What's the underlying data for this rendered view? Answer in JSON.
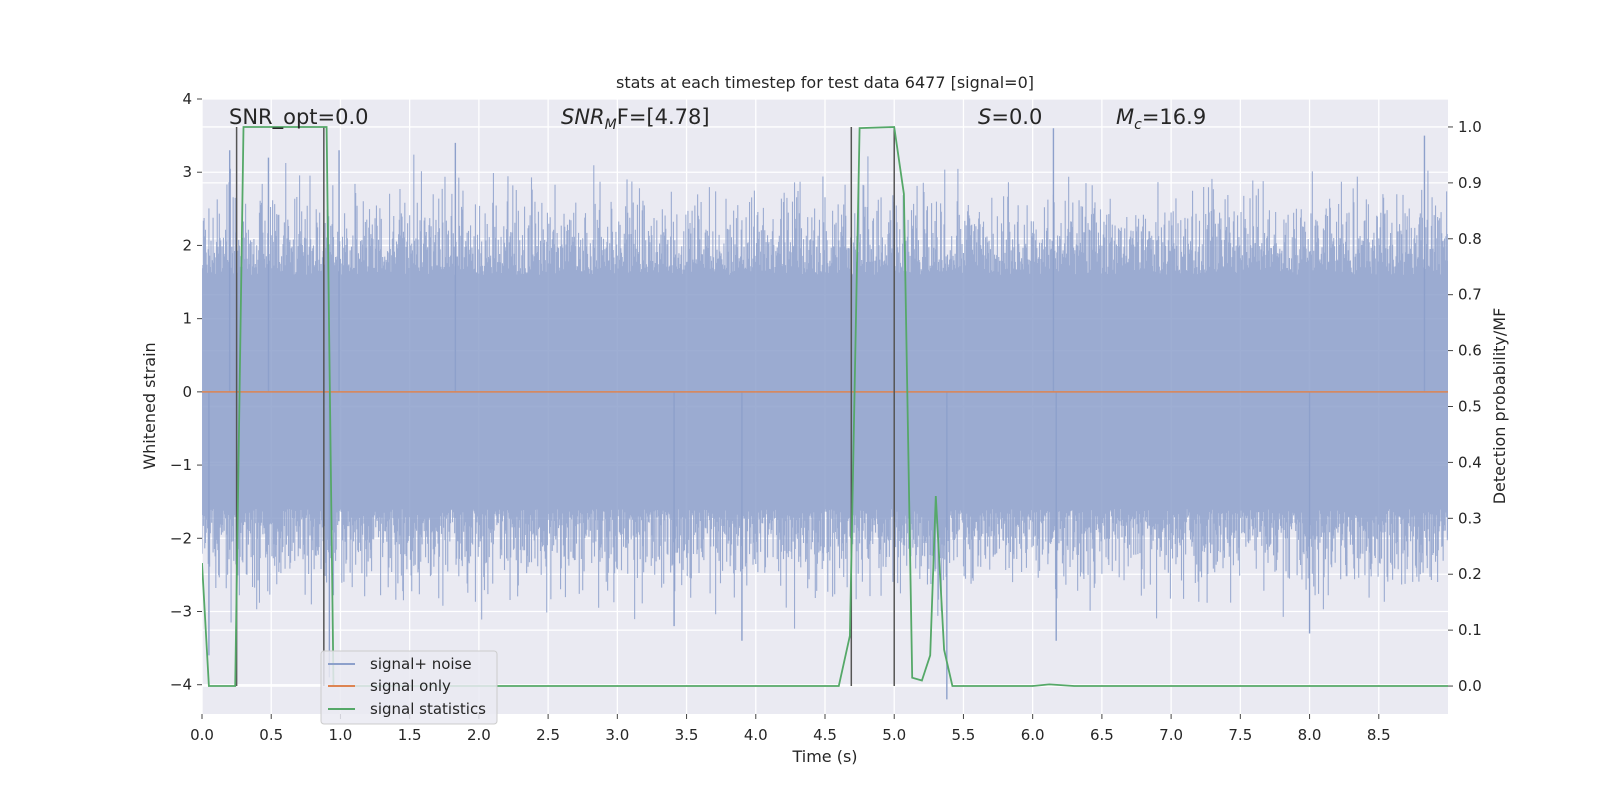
{
  "chart_data": {
    "type": "line",
    "title": "stats at each timestep for test data 6477 [signal=0]",
    "xlabel": "Time (s)",
    "ylabel": "Whitened strain",
    "y2label": "Detection probability/MF",
    "xlim": [
      0,
      9
    ],
    "ylim": [
      -4.4,
      4.0
    ],
    "y2lim": [
      -0.05,
      1.05
    ],
    "xticks": [
      0.0,
      0.5,
      1.0,
      1.5,
      2.0,
      2.5,
      3.0,
      3.5,
      4.0,
      4.5,
      5.0,
      5.5,
      6.0,
      6.5,
      7.0,
      7.5,
      8.0,
      8.5
    ],
    "xtick_labels": [
      "0.0",
      "0.5",
      "1.0",
      "1.5",
      "2.0",
      "2.5",
      "3.0",
      "3.5",
      "4.0",
      "4.5",
      "5.0",
      "5.5",
      "6.0",
      "6.5",
      "7.0",
      "7.5",
      "8.0",
      "8.5"
    ],
    "yticks": [
      4,
      3,
      2,
      1,
      0,
      -1,
      -2,
      -3,
      -4
    ],
    "ytick_labels": [
      "4",
      "3",
      "2",
      "1",
      "0",
      "−1",
      "−2",
      "−3",
      "−4"
    ],
    "y2ticks": [
      1.0,
      0.9,
      0.8,
      0.7,
      0.6,
      0.5,
      0.4,
      0.3,
      0.2,
      0.1,
      0.0
    ],
    "y2tick_labels": [
      "1.0",
      "0.9",
      "0.8",
      "0.7",
      "0.6",
      "0.5",
      "0.4",
      "0.3",
      "0.2",
      "0.1",
      "0.0"
    ],
    "grid": true,
    "legend_position": "lower-left",
    "annotations": {
      "snr_opt": "SNR_opt=0.0",
      "snr_mf_base": "SNR",
      "snr_mf_sub": "M",
      "snr_mf_rest": "F=[4.78]",
      "s_var": "S",
      "s_rest": "=0.0",
      "mc_base": "M",
      "mc_sub": "c",
      "mc_rest": "=16.9"
    },
    "series": [
      {
        "name": "signal+ noise",
        "color": "#8da0cb",
        "kind": "noise",
        "typical_range": [
          -1.6,
          1.6
        ],
        "x_range": [
          0.0,
          9.0
        ],
        "extreme_spikes": [
          {
            "x": 0.05,
            "y": -3.6
          },
          {
            "x": 0.2,
            "y": 3.3
          },
          {
            "x": 0.48,
            "y": 3.2
          },
          {
            "x": 0.92,
            "y": -3.9
          },
          {
            "x": 0.99,
            "y": 3.3
          },
          {
            "x": 1.83,
            "y": 3.4
          },
          {
            "x": 3.41,
            "y": -3.2
          },
          {
            "x": 3.9,
            "y": -3.4
          },
          {
            "x": 5.38,
            "y": -4.2
          },
          {
            "x": 6.15,
            "y": 3.6
          },
          {
            "x": 6.17,
            "y": -3.4
          },
          {
            "x": 8.0,
            "y": -3.3
          },
          {
            "x": 8.83,
            "y": 3.5
          }
        ]
      },
      {
        "name": "signal only",
        "color": "#dd8452",
        "kind": "flat",
        "x": [
          0.0,
          9.0
        ],
        "y": [
          0.0,
          0.0
        ]
      },
      {
        "name": "signal statistics",
        "color": "#55a868",
        "axis": "right",
        "x": [
          0.0,
          0.05,
          0.24,
          0.3,
          0.9,
          0.95,
          4.6,
          4.68,
          4.75,
          5.0,
          5.07,
          5.13,
          5.2,
          5.26,
          5.3,
          5.36,
          5.42,
          5.48,
          6.0,
          6.12,
          6.3,
          9.0
        ],
        "y": [
          0.22,
          0.0,
          0.0,
          1.0,
          1.0,
          0.0,
          0.0,
          0.09,
          0.998,
          1.0,
          0.88,
          0.015,
          0.01,
          0.055,
          0.34,
          0.065,
          0.0,
          0.0,
          0.0,
          0.003,
          0.0,
          0.0
        ]
      }
    ],
    "markers": {
      "name": "vertical markers",
      "color": "#555555",
      "x": [
        0.25,
        0.88,
        4.69,
        5.0
      ]
    }
  }
}
